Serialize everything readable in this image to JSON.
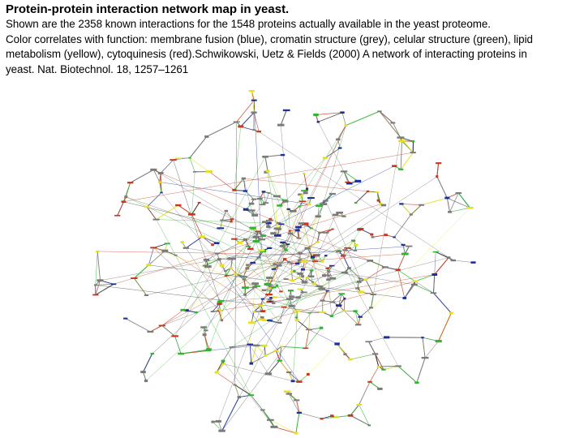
{
  "slide": {
    "title": "Protein-protein interaction network map in yeast.",
    "lines": [
      "Shown are the 2358 known interactions for the 1548 proteins actually available in the yeast proteome.",
      "Color correlates with function: membrane fusion (blue), cromatin structure (grey), celular structure (green), lipid",
      "metabolism (yellow), cytoquinesis (red).Schwikowski, Uetz & Fields (2000) A network of interacting proteins in",
      "yeast. Nat. Biotechnol. 18, 1257–1261"
    ]
  },
  "network": {
    "function_colors": {
      "membrane_fusion": "#1c2f9a",
      "cromatin_structure": "#6b6b6b",
      "celular_structure": "#2fb52f",
      "lipid_metabolism": "#e8e01a",
      "cytoquinesis": "#c8361c"
    }
  }
}
